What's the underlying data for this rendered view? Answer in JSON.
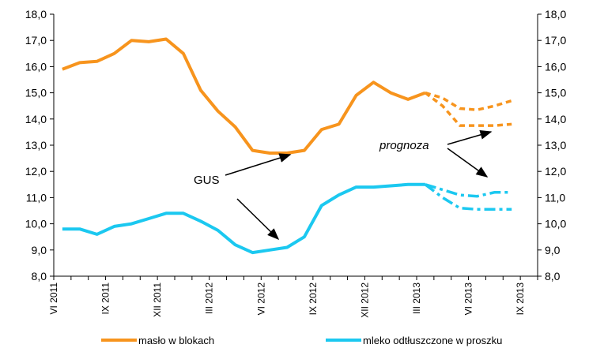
{
  "chart_data": {
    "type": "line",
    "title": "",
    "xlabel": "",
    "ylabel": "",
    "ylim": [
      8.0,
      18.0
    ],
    "yticks": [
      "8,0",
      "9,0",
      "10,0",
      "11,0",
      "12,0",
      "13,0",
      "14,0",
      "15,0",
      "16,0",
      "17,0",
      "18,0"
    ],
    "x_periods": [
      "VI 2011",
      "VII 2011",
      "VIII 2011",
      "IX 2011",
      "X 2011",
      "XI 2011",
      "XII 2011",
      "I 2012",
      "II 2012",
      "III 2012",
      "IV 2012",
      "V 2012",
      "VI 2012",
      "VII 2012",
      "VIII 2012",
      "IX 2012",
      "X 2012",
      "XI 2012",
      "XII 2012",
      "I 2013",
      "II 2013",
      "III 2013",
      "IV 2013",
      "V 2013",
      "VI 2013",
      "VII 2013",
      "VIII 2013",
      "IX 2013"
    ],
    "x_tick_labels": [
      "VI 2011",
      "IX 2011",
      "XII 2011",
      "III 2012",
      "VI 2012",
      "IX 2012",
      "XII 2012",
      "III 2013",
      "VI 2013",
      "IX 2013"
    ],
    "grid": false,
    "legend_position": "bottom",
    "series": [
      {
        "name": "masło w blokach",
        "color": "#F7941D",
        "values": [
          15.9,
          16.15,
          16.2,
          16.5,
          17.0,
          16.95,
          17.05,
          16.5,
          15.1,
          14.3,
          13.7,
          12.8,
          12.7,
          12.7,
          12.8,
          13.6,
          13.8,
          14.9,
          15.4,
          15.0,
          14.75,
          15.0
        ],
        "forecast_upper": [
          15.0,
          14.8,
          14.4,
          14.35,
          14.5,
          14.7
        ],
        "forecast_lower": [
          15.0,
          14.5,
          13.75,
          13.75,
          13.75,
          13.8
        ]
      },
      {
        "name": "mleko odtłuszczone w proszku",
        "color": "#1BC8F0",
        "values": [
          9.8,
          9.8,
          9.6,
          9.9,
          10.0,
          10.2,
          10.4,
          10.4,
          10.1,
          9.75,
          9.2,
          8.9,
          9.0,
          9.1,
          9.5,
          10.7,
          11.1,
          11.4,
          11.4,
          11.45,
          11.5,
          11.5
        ],
        "forecast_upper": [
          11.5,
          11.3,
          11.1,
          11.05,
          11.2,
          11.2
        ],
        "forecast_lower": [
          11.5,
          11.0,
          10.6,
          10.55,
          10.55,
          10.55
        ]
      }
    ],
    "annotations": [
      "GUS",
      "prognoza"
    ]
  }
}
